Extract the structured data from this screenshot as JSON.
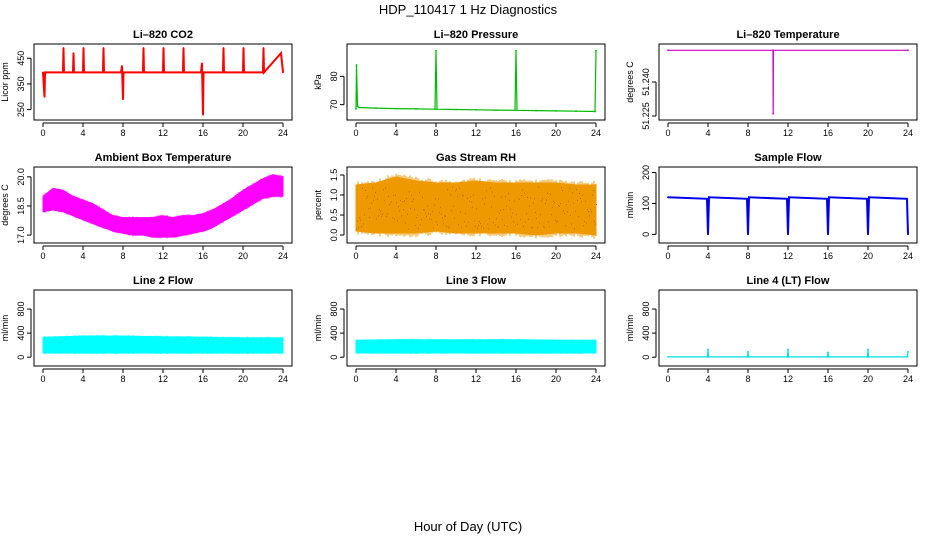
{
  "figure": {
    "title": "HDP_110417  1 Hz Diagnostics",
    "xlabel": "Hour of Day (UTC)"
  },
  "chart_data": [
    {
      "type": "line",
      "title": "Li–820 CO2",
      "ylabel": "Licor ppm",
      "color": "#ff0000",
      "xlim": [
        0,
        24
      ],
      "ylim": [
        225,
        490
      ],
      "xticks": [
        0,
        4,
        8,
        12,
        16,
        20,
        24
      ],
      "yticks": [
        250,
        350,
        450
      ],
      "series": [
        {
          "x": [
            0,
            0.15,
            0.2,
            0.3,
            2,
            2.05,
            2.1,
            3,
            3.05,
            3.1,
            4,
            4.05,
            4.1,
            6,
            6.05,
            6.1,
            7.8,
            7.9,
            8,
            8.05,
            8.1,
            10,
            10.05,
            10.1,
            12,
            12.05,
            12.1,
            14,
            14.05,
            14.1,
            15.8,
            15.9,
            16,
            16.05,
            16.1,
            16.3,
            18,
            18.05,
            18.1,
            20,
            20.05,
            20.1,
            22,
            22.05,
            22.1,
            23.8,
            24
          ],
          "y": [
            395,
            300,
            395,
            395,
            395,
            490,
            395,
            395,
            470,
            395,
            395,
            490,
            395,
            395,
            490,
            395,
            395,
            420,
            290,
            395,
            395,
            395,
            490,
            395,
            395,
            490,
            395,
            395,
            490,
            395,
            395,
            430,
            230,
            395,
            395,
            395,
            395,
            490,
            395,
            395,
            490,
            395,
            395,
            490,
            395,
            470,
            395
          ]
        }
      ]
    },
    {
      "type": "line",
      "title": "Li–820 Pressure",
      "ylabel": "kPa",
      "color": "#00bb00",
      "xlim": [
        0,
        24
      ],
      "ylim": [
        66,
        90
      ],
      "xticks": [
        0,
        4,
        8,
        12,
        16,
        20,
        24
      ],
      "yticks": [
        70,
        80
      ],
      "series": [
        {
          "x": [
            0,
            0.05,
            0.15,
            0.3,
            2,
            4,
            6,
            7.9,
            8,
            8.1,
            10,
            12,
            14,
            15.9,
            16,
            16.1,
            18,
            20,
            22,
            23.9,
            24
          ],
          "y": [
            68.5,
            84,
            69.5,
            69,
            68.8,
            68.6,
            68.5,
            68.4,
            89,
            68.4,
            68.3,
            68.2,
            68.1,
            68.0,
            89,
            68.0,
            67.9,
            67.8,
            67.7,
            67.6,
            89
          ]
        }
      ]
    },
    {
      "type": "line",
      "title": "Li–820 Temperature",
      "ylabel": "degrees C",
      "color": "#cc00cc",
      "xlim": [
        0,
        24
      ],
      "ylim": [
        51.225,
        51.255
      ],
      "xticks": [
        0,
        4,
        8,
        12,
        16,
        20,
        24
      ],
      "yticks": [
        51.225,
        51.24
      ],
      "series": [
        {
          "x": [
            0,
            10.5,
            10.52,
            10.54,
            24
          ],
          "y": [
            51.254,
            51.254,
            51.226,
            51.254,
            51.254
          ]
        }
      ]
    },
    {
      "type": "area",
      "title": "Ambient Box Temperature",
      "ylabel": "degrees C",
      "color": "#ff00ff",
      "xlim": [
        0,
        24
      ],
      "ylim": [
        16.8,
        20.3
      ],
      "xticks": [
        0,
        4,
        8,
        12,
        16,
        20,
        24
      ],
      "yticks": [
        17.0,
        18.5,
        20.0
      ],
      "series": [
        {
          "name": "upper",
          "x": [
            0,
            1,
            2,
            3,
            4,
            5,
            6,
            7,
            8,
            9,
            10,
            11,
            12,
            13,
            14,
            15,
            16,
            17,
            18,
            19,
            20,
            21,
            22,
            23,
            24
          ],
          "y": [
            19.0,
            19.4,
            19.3,
            19.0,
            18.8,
            18.6,
            18.3,
            18.0,
            17.9,
            17.9,
            17.9,
            17.9,
            18.0,
            17.9,
            18.0,
            18.0,
            18.1,
            18.3,
            18.6,
            18.9,
            19.3,
            19.6,
            19.9,
            20.1,
            20.0
          ]
        },
        {
          "name": "lower",
          "x": [
            0,
            1,
            2,
            3,
            4,
            5,
            6,
            7,
            8,
            9,
            10,
            11,
            12,
            13,
            14,
            15,
            16,
            17,
            18,
            19,
            20,
            21,
            22,
            23,
            24
          ],
          "y": [
            18.2,
            18.3,
            18.2,
            18.0,
            17.8,
            17.6,
            17.4,
            17.2,
            17.1,
            17.0,
            17.0,
            16.9,
            16.9,
            16.9,
            17.0,
            17.1,
            17.2,
            17.4,
            17.7,
            18.0,
            18.3,
            18.6,
            18.9,
            19.0,
            19.0
          ]
        }
      ]
    },
    {
      "type": "area",
      "title": "Gas Stream RH",
      "ylabel": "percent",
      "color": "#ee9900",
      "xlim": [
        0,
        24
      ],
      "ylim": [
        -0.1,
        1.6
      ],
      "xticks": [
        0,
        4,
        8,
        12,
        16,
        20,
        24
      ],
      "yticks": [
        0.0,
        0.5,
        1.0,
        1.5
      ],
      "series": [
        {
          "name": "upper",
          "x": [
            0,
            2,
            4,
            6,
            8,
            10,
            12,
            14,
            16,
            18,
            20,
            22,
            24
          ],
          "y": [
            1.25,
            1.3,
            1.45,
            1.35,
            1.3,
            1.3,
            1.35,
            1.3,
            1.3,
            1.3,
            1.3,
            1.25,
            1.25
          ]
        },
        {
          "name": "lower",
          "x": [
            0,
            2,
            4,
            6,
            8,
            10,
            12,
            14,
            16,
            18,
            20,
            22,
            24
          ],
          "y": [
            0.1,
            0.05,
            0.05,
            0.05,
            0.1,
            0.05,
            0.05,
            0.05,
            0.05,
            0.0,
            0.05,
            0.05,
            0.0
          ]
        }
      ]
    },
    {
      "type": "line",
      "title": "Sample Flow",
      "ylabel": "ml/min",
      "color": "#0000ee",
      "xlim": [
        0,
        24
      ],
      "ylim": [
        -15,
        205
      ],
      "xticks": [
        0,
        4,
        8,
        12,
        16,
        20,
        24
      ],
      "yticks": [
        0,
        100,
        200
      ],
      "series": [
        {
          "x": [
            0,
            3.9,
            4,
            4.1,
            7.9,
            8,
            8.1,
            11.9,
            12,
            12.1,
            15.9,
            16,
            16.1,
            19.9,
            20,
            20.1,
            23.9,
            24
          ],
          "y": [
            120,
            115,
            0,
            120,
            115,
            0,
            120,
            115,
            0,
            120,
            115,
            0,
            120,
            115,
            0,
            120,
            115,
            0
          ]
        }
      ]
    },
    {
      "type": "area",
      "title": "Line 2 Flow",
      "ylabel": "ml/min",
      "color": "#00ffff",
      "xlim": [
        0,
        24
      ],
      "ylim": [
        -80,
        1050
      ],
      "xticks": [
        0,
        4,
        8,
        12,
        16,
        20,
        24
      ],
      "yticks": [
        0,
        400,
        800
      ],
      "series": [
        {
          "name": "upper",
          "x": [
            0,
            4,
            8,
            12,
            16,
            20,
            24
          ],
          "y": [
            330,
            350,
            350,
            340,
            330,
            320,
            320
          ]
        },
        {
          "name": "lower",
          "x": [
            0,
            4,
            8,
            12,
            16,
            20,
            24
          ],
          "y": [
            70,
            70,
            70,
            70,
            70,
            70,
            70
          ]
        }
      ]
    },
    {
      "type": "area",
      "title": "Line 3 Flow",
      "ylabel": "ml/min",
      "color": "#00ffff",
      "xlim": [
        0,
        24
      ],
      "ylim": [
        -80,
        1050
      ],
      "xticks": [
        0,
        4,
        8,
        12,
        16,
        20,
        24
      ],
      "yticks": [
        0,
        400,
        800
      ],
      "series": [
        {
          "name": "upper",
          "x": [
            0,
            4,
            8,
            12,
            16,
            20,
            24
          ],
          "y": [
            280,
            290,
            290,
            290,
            290,
            280,
            280
          ]
        },
        {
          "name": "lower",
          "x": [
            0,
            4,
            8,
            12,
            16,
            20,
            24
          ],
          "y": [
            70,
            70,
            70,
            70,
            70,
            70,
            70
          ]
        }
      ]
    },
    {
      "type": "line",
      "title": "Line 4 (LT) Flow",
      "ylabel": "ml/min",
      "color": "#00dddd",
      "xlim": [
        0,
        24
      ],
      "ylim": [
        -80,
        1050
      ],
      "xticks": [
        0,
        4,
        8,
        12,
        16,
        20,
        24
      ],
      "yticks": [
        0,
        400,
        800
      ],
      "series": [
        {
          "x": [
            0,
            3.95,
            4,
            4.05,
            7.95,
            8,
            8.05,
            11.95,
            12,
            12.05,
            15.95,
            16,
            16.05,
            19.95,
            20,
            20.05,
            23.95,
            24
          ],
          "y": [
            5,
            5,
            130,
            5,
            5,
            90,
            5,
            5,
            130,
            5,
            5,
            80,
            5,
            5,
            130,
            5,
            5,
            90
          ]
        }
      ]
    }
  ]
}
